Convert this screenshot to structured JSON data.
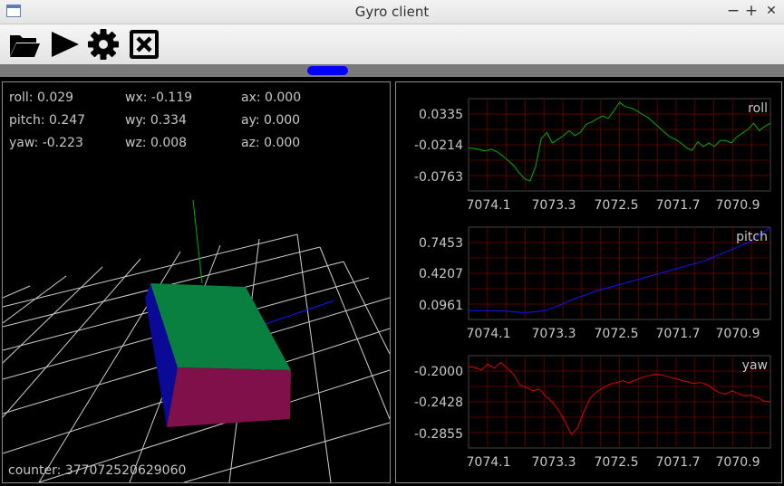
{
  "window": {
    "title": "Gyro client",
    "minimize": "−",
    "maximize": "+",
    "close": "✕"
  },
  "toolbar": {
    "buttons": [
      "open-folder",
      "play",
      "settings",
      "close-box"
    ]
  },
  "stats": {
    "roll": "roll: 0.029",
    "pitch": "pitch: 0.247",
    "yaw": "yaw: -0.223",
    "wx": "wx: -0.119",
    "wy": "wy: 0.334",
    "wz": "wz: 0.008",
    "ax": "ax: 0.000",
    "ay": "ay: 0.000",
    "az": "az: 0.000"
  },
  "counter": "counter: 377072520629060",
  "x_ticks": [
    "7074.1",
    "7073.3",
    "7072.5",
    "7071.7",
    "7070.9"
  ],
  "charts": [
    {
      "name": "roll",
      "color": "#00b000",
      "ticks": [
        "0.0335",
        "-0.0214",
        "-0.0763"
      ]
    },
    {
      "name": "pitch",
      "color": "#1414ff",
      "ticks": [
        "0.7453",
        "0.4207",
        "0.0961"
      ]
    },
    {
      "name": "yaw",
      "color": "#e00000",
      "ticks": [
        "-0.2000",
        "-0.2428",
        "-0.2855"
      ]
    }
  ],
  "chart_data": [
    {
      "type": "line",
      "title": "roll",
      "xlabel": "",
      "ylabel": "",
      "x_ticks": [
        "7074.1",
        "7073.3",
        "7072.5",
        "7071.7",
        "7070.9"
      ],
      "y_ticks": [
        "0.0335",
        "-0.0214",
        "-0.0763"
      ],
      "ylim": [
        -0.1,
        0.05
      ],
      "grid": true,
      "series": [
        {
          "name": "roll",
          "values": [
            -0.03,
            -0.031,
            -0.033,
            -0.035,
            -0.032,
            -0.036,
            -0.042,
            -0.05,
            -0.058,
            -0.07,
            -0.08,
            -0.084,
            -0.06,
            -0.015,
            -0.005,
            -0.022,
            -0.016,
            -0.01,
            -0.002,
            -0.01,
            -0.005,
            0.008,
            0.012,
            0.017,
            0.022,
            0.018,
            0.03,
            0.044,
            0.037,
            0.035,
            0.031,
            0.025,
            0.02,
            0.012,
            0.004,
            -0.004,
            -0.012,
            -0.016,
            -0.022,
            -0.03,
            -0.034,
            -0.02,
            -0.028,
            -0.022,
            -0.028,
            -0.018,
            -0.018,
            -0.022,
            -0.012,
            -0.006,
            0.0,
            0.01,
            -0.002,
            0.005,
            0.01
          ]
        }
      ]
    },
    {
      "type": "line",
      "title": "pitch",
      "xlabel": "",
      "ylabel": "",
      "x_ticks": [
        "7074.1",
        "7073.3",
        "7072.5",
        "7071.7",
        "7070.9"
      ],
      "y_ticks": [
        "0.7453",
        "0.4207",
        "0.0961"
      ],
      "ylim": [
        0.0,
        0.9
      ],
      "grid": true,
      "series": [
        {
          "name": "pitch",
          "values": [
            0.085,
            0.085,
            0.085,
            0.085,
            0.083,
            0.083,
            0.075,
            0.07,
            0.07,
            0.075,
            0.085,
            0.1,
            0.13,
            0.16,
            0.19,
            0.22,
            0.24,
            0.27,
            0.29,
            0.31,
            0.33,
            0.35,
            0.37,
            0.39,
            0.41,
            0.43,
            0.45,
            0.47,
            0.49,
            0.51,
            0.53,
            0.55,
            0.57,
            0.6,
            0.63,
            0.66,
            0.69,
            0.72,
            0.75,
            0.8,
            0.85,
            0.9
          ]
        }
      ]
    },
    {
      "type": "line",
      "title": "yaw",
      "xlabel": "",
      "ylabel": "",
      "x_ticks": [
        "7074.1",
        "7073.3",
        "7072.5",
        "7071.7",
        "7070.9"
      ],
      "y_ticks": [
        "-0.2000",
        "-0.2428",
        "-0.2855"
      ],
      "ylim": [
        -0.3,
        -0.19
      ],
      "grid": true,
      "series": [
        {
          "name": "yaw",
          "values": [
            -0.203,
            -0.204,
            -0.207,
            -0.2,
            -0.205,
            -0.198,
            -0.205,
            -0.212,
            -0.225,
            -0.228,
            -0.232,
            -0.23,
            -0.238,
            -0.245,
            -0.255,
            -0.268,
            -0.284,
            -0.276,
            -0.256,
            -0.24,
            -0.233,
            -0.228,
            -0.224,
            -0.222,
            -0.22,
            -0.222,
            -0.219,
            -0.216,
            -0.214,
            -0.212,
            -0.213,
            -0.215,
            -0.217,
            -0.219,
            -0.221,
            -0.223,
            -0.222,
            -0.224,
            -0.229,
            -0.234,
            -0.236,
            -0.232,
            -0.235,
            -0.238,
            -0.237,
            -0.24,
            -0.244,
            -0.245
          ]
        }
      ]
    }
  ]
}
